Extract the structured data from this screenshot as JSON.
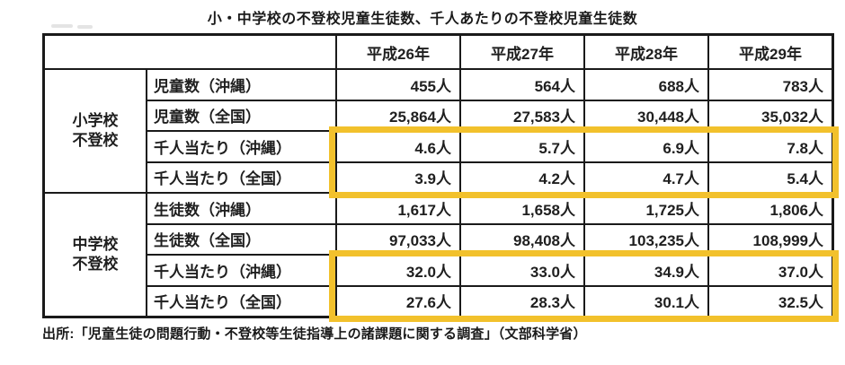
{
  "title": "小・中学校の不登校児童生徒数、千人あたりの不登校児童生徒数",
  "source": "出所:「児童生徒の問題行動・不登校等生徒指導上の諸課題に関する調査」（文部科学省）",
  "highlight_color": "#F2C12C",
  "table": {
    "year_headers": [
      "平成26年",
      "平成27年",
      "平成28年",
      "平成29年"
    ],
    "groups": [
      {
        "name_line1": "小学校",
        "name_line2": "不登校",
        "rows": [
          {
            "label": "児童数（沖縄）",
            "values": [
              "455人",
              "564人",
              "688人",
              "783人"
            ],
            "highlighted": false
          },
          {
            "label": "児童数（全国）",
            "values": [
              "25,864人",
              "27,583人",
              "30,448人",
              "35,032人"
            ],
            "highlighted": false
          },
          {
            "label": "千人当たり（沖縄）",
            "values": [
              "4.6人",
              "5.7人",
              "6.9人",
              "7.8人"
            ],
            "highlighted": true
          },
          {
            "label": "千人当たり（全国）",
            "values": [
              "3.9人",
              "4.2人",
              "4.7人",
              "5.4人"
            ],
            "highlighted": true
          }
        ]
      },
      {
        "name_line1": "中学校",
        "name_line2": "不登校",
        "rows": [
          {
            "label": "生徒数（沖縄）",
            "values": [
              "1,617人",
              "1,658人",
              "1,725人",
              "1,806人"
            ],
            "highlighted": false
          },
          {
            "label": "生徒数（全国）",
            "values": [
              "97,033人",
              "98,408人",
              "103,235人",
              "108,999人"
            ],
            "highlighted": false
          },
          {
            "label": "千人当たり（沖縄）",
            "values": [
              "32.0人",
              "33.0人",
              "34.9人",
              "37.0人"
            ],
            "highlighted": true
          },
          {
            "label": "千人当たり（全国）",
            "values": [
              "27.6人",
              "28.3人",
              "30.1人",
              "32.5人"
            ],
            "highlighted": true
          }
        ]
      }
    ]
  },
  "chart_data": {
    "type": "table",
    "title": "小・中学校の不登校児童生徒数、千人あたりの不登校児童生徒数",
    "categories": [
      "平成26年",
      "平成27年",
      "平成28年",
      "平成29年"
    ],
    "unit": "人",
    "series": [
      {
        "group": "小学校不登校",
        "name": "児童数（沖縄）",
        "values": [
          455,
          564,
          688,
          783
        ],
        "highlighted": false
      },
      {
        "group": "小学校不登校",
        "name": "児童数（全国）",
        "values": [
          25864,
          27583,
          30448,
          35032
        ],
        "highlighted": false
      },
      {
        "group": "小学校不登校",
        "name": "千人当たり（沖縄）",
        "values": [
          4.6,
          5.7,
          6.9,
          7.8
        ],
        "highlighted": true
      },
      {
        "group": "小学校不登校",
        "name": "千人当たり（全国）",
        "values": [
          3.9,
          4.2,
          4.7,
          5.4
        ],
        "highlighted": true
      },
      {
        "group": "中学校不登校",
        "name": "生徒数（沖縄）",
        "values": [
          1617,
          1658,
          1725,
          1806
        ],
        "highlighted": false
      },
      {
        "group": "中学校不登校",
        "name": "生徒数（全国）",
        "values": [
          97033,
          98408,
          103235,
          108999
        ],
        "highlighted": false
      },
      {
        "group": "中学校不登校",
        "name": "千人当たり（沖縄）",
        "values": [
          32.0,
          33.0,
          34.9,
          37.0
        ],
        "highlighted": true
      },
      {
        "group": "中学校不登校",
        "name": "千人当たり（全国）",
        "values": [
          27.6,
          28.3,
          30.1,
          32.5
        ],
        "highlighted": true
      }
    ],
    "source": "「児童生徒の問題行動・不登校等生徒指導上の諸課題に関する調査」（文部科学省）"
  }
}
